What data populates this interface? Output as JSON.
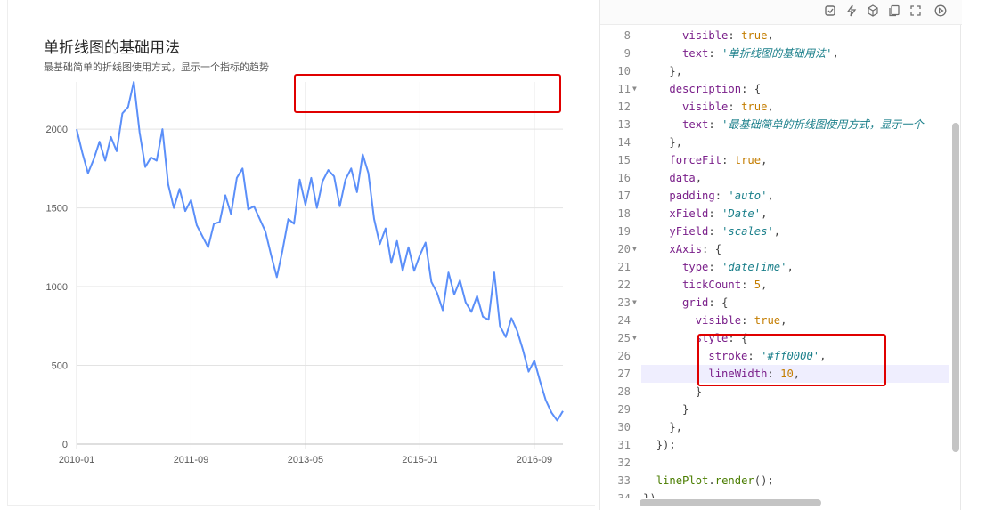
{
  "preview": {
    "title": "单折线图的基础用法",
    "description": "最基础简单的折线图使用方式，显示一个指标的趋势"
  },
  "chart_data": {
    "type": "line",
    "x_field": "Date",
    "y_field": "scales",
    "x_ticks": [
      "2010-01",
      "2011-09",
      "2013-05",
      "2015-01",
      "2016-09"
    ],
    "y_ticks": [
      "0",
      "500",
      "1000",
      "1500",
      "2000"
    ],
    "ylim": [
      0,
      2300
    ],
    "line_color": "#5b8ff9",
    "grid": true,
    "x": [
      "2010-01",
      "2010-02",
      "2010-03",
      "2010-04",
      "2010-05",
      "2010-06",
      "2010-07",
      "2010-08",
      "2010-09",
      "2010-10",
      "2010-11",
      "2010-12",
      "2011-01",
      "2011-02",
      "2011-03",
      "2011-04",
      "2011-05",
      "2011-06",
      "2011-07",
      "2011-08",
      "2011-09",
      "2011-10",
      "2011-11",
      "2011-12",
      "2012-01",
      "2012-02",
      "2012-03",
      "2012-04",
      "2012-05",
      "2012-06",
      "2012-07",
      "2012-08",
      "2012-09",
      "2012-10",
      "2012-11",
      "2012-12",
      "2013-01",
      "2013-02",
      "2013-03",
      "2013-04",
      "2013-05",
      "2013-06",
      "2013-07",
      "2013-08",
      "2013-09",
      "2013-10",
      "2013-11",
      "2013-12",
      "2014-01",
      "2014-02",
      "2014-03",
      "2014-04",
      "2014-05",
      "2014-06",
      "2014-07",
      "2014-08",
      "2014-09",
      "2014-10",
      "2014-11",
      "2014-12",
      "2015-01",
      "2015-02",
      "2015-03",
      "2015-04",
      "2015-05",
      "2015-06",
      "2015-07",
      "2015-08",
      "2015-09",
      "2015-10",
      "2015-11",
      "2015-12",
      "2016-01",
      "2016-02",
      "2016-03",
      "2016-04",
      "2016-05",
      "2016-06",
      "2016-07",
      "2016-08",
      "2016-09",
      "2016-10",
      "2016-11",
      "2016-12",
      "2017-01",
      "2017-02"
    ],
    "values": [
      2000,
      1850,
      1720,
      1810,
      1920,
      1800,
      1950,
      1860,
      2100,
      2140,
      2300,
      1980,
      1760,
      1820,
      1800,
      2000,
      1650,
      1500,
      1620,
      1480,
      1550,
      1390,
      1320,
      1250,
      1400,
      1410,
      1580,
      1460,
      1690,
      1750,
      1490,
      1510,
      1430,
      1350,
      1200,
      1060,
      1230,
      1430,
      1400,
      1680,
      1520,
      1690,
      1500,
      1670,
      1740,
      1700,
      1510,
      1680,
      1750,
      1600,
      1840,
      1720,
      1430,
      1270,
      1370,
      1150,
      1290,
      1100,
      1250,
      1100,
      1200,
      1280,
      1030,
      960,
      850,
      1090,
      950,
      1040,
      900,
      840,
      940,
      810,
      790,
      1090,
      750,
      680,
      800,
      720,
      600,
      460,
      530,
      400,
      280,
      200,
      150,
      210
    ]
  },
  "toolbar": {
    "icons": [
      "reset-icon",
      "flash-icon",
      "cube-icon",
      "copy-icon",
      "fullscreen-icon",
      "play-icon"
    ]
  },
  "code": {
    "lines": [
      {
        "n": "8",
        "fold": false
      },
      {
        "n": "9",
        "fold": false
      },
      {
        "n": "10",
        "fold": false
      },
      {
        "n": "11",
        "fold": true
      },
      {
        "n": "12",
        "fold": false
      },
      {
        "n": "13",
        "fold": false
      },
      {
        "n": "14",
        "fold": false
      },
      {
        "n": "15",
        "fold": false
      },
      {
        "n": "16",
        "fold": false
      },
      {
        "n": "17",
        "fold": false
      },
      {
        "n": "18",
        "fold": false
      },
      {
        "n": "19",
        "fold": false
      },
      {
        "n": "20",
        "fold": true
      },
      {
        "n": "21",
        "fold": false
      },
      {
        "n": "22",
        "fold": false
      },
      {
        "n": "23",
        "fold": true
      },
      {
        "n": "24",
        "fold": false
      },
      {
        "n": "25",
        "fold": true
      },
      {
        "n": "26",
        "fold": false
      },
      {
        "n": "27",
        "fold": false
      },
      {
        "n": "28",
        "fold": false
      },
      {
        "n": "29",
        "fold": false
      },
      {
        "n": "30",
        "fold": false
      },
      {
        "n": "31",
        "fold": false
      },
      {
        "n": "32",
        "fold": false
      },
      {
        "n": "33",
        "fold": false
      },
      {
        "n": "34",
        "fold": false
      }
    ],
    "tokens": {
      "l8_key": "visible",
      "l8_val": "true",
      "l9_key": "text",
      "l9_val": "'单折线图的基础用法'",
      "l10": "},",
      "l11_key": "description",
      "l11_rest": ": {",
      "l12_key": "visible",
      "l12_val": "true",
      "l13_key": "text",
      "l13_val": "'最基础简单的折线图使用方式，显示一个",
      "l14": "},",
      "l15_key": "forceFit",
      "l15_val": "true",
      "l16_key": "data",
      "l17_key": "padding",
      "l17_val": "'auto'",
      "l18_key": "xField",
      "l18_val": "'Date'",
      "l19_key": "yField",
      "l19_val": "'scales'",
      "l20_key": "xAxis",
      "l20_rest": ": {",
      "l21_key": "type",
      "l21_val": "'dateTime'",
      "l22_key": "tickCount",
      "l22_val": "5",
      "l23_key": "grid",
      "l23_rest": ": {",
      "l24_key": "visible",
      "l24_val": "true",
      "l25_key": "style",
      "l25_rest": ": {",
      "l26_key": "stroke",
      "l26_val": "'#ff0000'",
      "l27_key": "lineWidth",
      "l27_val": "10",
      "l28": "}",
      "l29": "}",
      "l30": "},",
      "l31": "});",
      "l33_obj": "linePlot",
      "l33_fn": "render",
      "l33_rest": "();",
      "l34": "})"
    }
  }
}
